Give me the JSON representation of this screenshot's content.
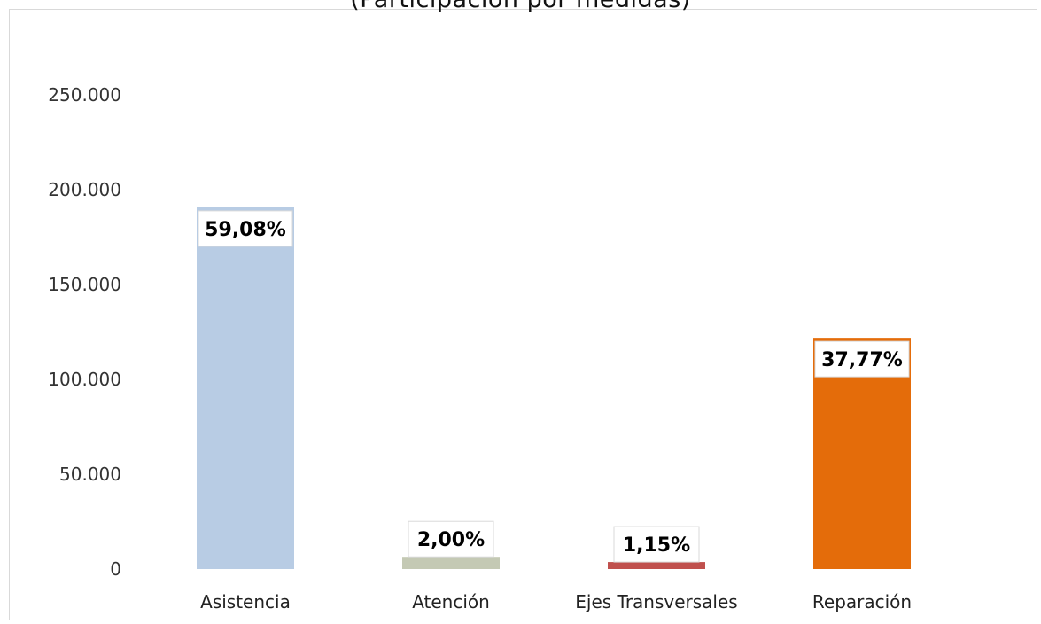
{
  "chart_data": {
    "type": "bar",
    "title": "(Participación por medidas)",
    "categories": [
      "Asistencia",
      "Atención",
      "Ejes Transversales",
      "Reparación"
    ],
    "values": [
      190700,
      6450,
      3700,
      121900
    ],
    "data_labels": [
      "59,08%",
      "2,00%",
      "1,15%",
      "37,77%"
    ],
    "colors": [
      "#b8cce4",
      "#c4c9b4",
      "#c0504d",
      "#e46c0a"
    ],
    "ylim": [
      0,
      250000
    ],
    "yticks": [
      0,
      50000,
      100000,
      150000,
      200000,
      250000
    ],
    "ytick_labels": [
      "0",
      "50.000",
      "100.000",
      "150.000",
      "200.000",
      "250.000"
    ],
    "xlabel": "",
    "ylabel": "",
    "grid": false,
    "legend": "none"
  }
}
